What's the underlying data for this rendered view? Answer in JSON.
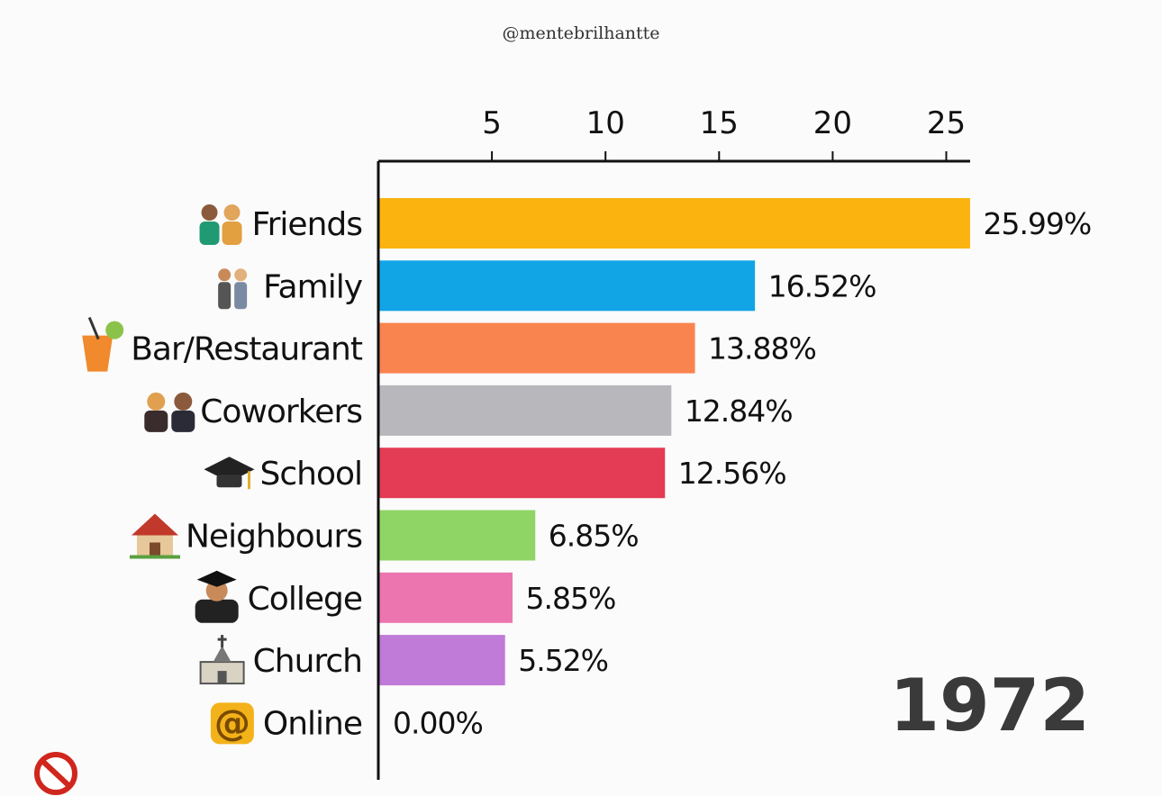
{
  "watermark": "@mentebrilhantte",
  "year": "1972",
  "colors": {
    "axis": "#111111",
    "faded_tick": "#c8c8c8"
  },
  "chart_data": {
    "type": "bar",
    "orientation": "horizontal",
    "title": "",
    "xlabel": "",
    "ylabel": "",
    "xlim": [
      0,
      26
    ],
    "x_ticks": [
      "5",
      "10",
      "15",
      "20",
      "25"
    ],
    "x_tick_values": [
      5,
      10,
      15,
      20,
      25
    ],
    "grid": false,
    "legend": "none",
    "categories": [
      "Friends",
      "Family",
      "Bar/Restaurant",
      "Coworkers",
      "School",
      "Neighbours",
      "College",
      "Church",
      "Online"
    ],
    "values": [
      25.99,
      16.52,
      13.88,
      12.84,
      12.56,
      6.85,
      5.85,
      5.52,
      0.0
    ],
    "value_labels": [
      "25.99%",
      "16.52%",
      "13.88%",
      "12.84%",
      "12.56%",
      "6.85%",
      "5.85%",
      "5.52%",
      "0.00%"
    ],
    "bar_colors": [
      "#fbb40f",
      "#11a5e6",
      "#fa8450",
      "#b8b8bc",
      "#e33c54",
      "#8fd566",
      "#ec75b0",
      "#c07ad8",
      "#cccccc"
    ],
    "icons": [
      "couple-icon",
      "family-icon",
      "cocktail-icon",
      "coworkers-icon",
      "graduation-cap-icon",
      "house-icon",
      "graduate-icon",
      "church-icon",
      "at-sign-icon"
    ]
  }
}
